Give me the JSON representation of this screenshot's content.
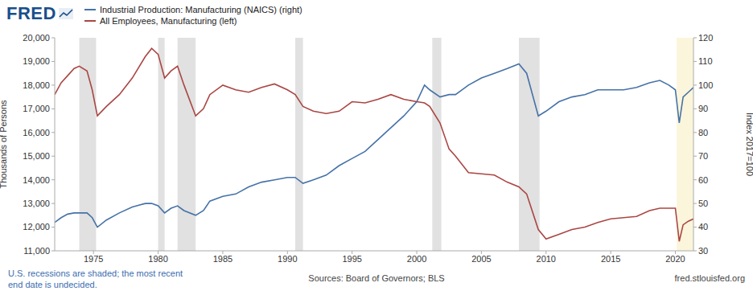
{
  "logo": "FRED",
  "footnote": [
    "U.S. recessions are shaded; the most recent",
    "end date is undecided."
  ],
  "source": "Sources: Board of Governors; BLS",
  "url": "fred.stlouisfed.org",
  "chart_data": {
    "type": "line",
    "ylabel": "Thousands of Persons",
    "y2label": "Index 2017=100",
    "legend": "top left",
    "grid": false,
    "x": [
      1972.0,
      1972.5,
      1973.0,
      1973.5,
      1973.9,
      1974.5,
      1974.9,
      1975.3,
      1976.0,
      1977.0,
      1978.0,
      1979.0,
      1979.5,
      1980.0,
      1980.5,
      1981.0,
      1981.5,
      1982.0,
      1982.9,
      1983.5,
      1984.0,
      1985.0,
      1986.0,
      1987.0,
      1988.0,
      1989.0,
      1990.0,
      1990.6,
      1991.2,
      1992.0,
      1993.0,
      1994.0,
      1995.0,
      1996.0,
      1997.0,
      1998.0,
      1999.0,
      2000.0,
      2000.6,
      2001.0,
      2001.8,
      2002.5,
      2003.0,
      2004.0,
      2005.0,
      2006.0,
      2007.0,
      2007.9,
      2008.5,
      2009.4,
      2010.0,
      2011.0,
      2012.0,
      2013.0,
      2014.0,
      2015.0,
      2016.0,
      2017.0,
      2018.0,
      2018.8,
      2019.5,
      2020.0,
      2020.3,
      2020.6,
      2021.0,
      2021.2,
      2021.4
    ],
    "series": [
      {
        "name": "Industrial Production: Manufacturing (NAICS) (right)",
        "color": "#4572a7",
        "axis": "y2",
        "values": [
          42,
          44,
          45.5,
          46,
          46,
          46,
          44,
          40,
          43,
          46,
          48.5,
          50,
          50,
          49,
          46,
          48,
          49,
          47,
          45,
          47,
          51,
          53,
          54,
          57,
          59,
          60,
          61,
          61,
          58.5,
          60,
          62,
          66,
          69,
          72,
          77,
          82,
          87,
          93,
          100,
          98,
          95,
          96,
          96,
          100,
          103,
          105,
          107,
          109,
          105,
          87,
          89,
          93,
          95,
          96,
          98,
          98,
          98,
          99,
          101,
          102,
          100,
          98,
          84,
          95,
          97,
          98,
          99
        ]
      },
      {
        "name": "All Employees, Manufacturing (left)",
        "color": "#aa4643",
        "values": [
          17600,
          18100,
          18400,
          18700,
          18800,
          18600,
          17800,
          16700,
          17100,
          17600,
          18300,
          19200,
          19550,
          19300,
          18300,
          18600,
          18800,
          18000,
          16700,
          17000,
          17600,
          18000,
          17800,
          17700,
          17900,
          18050,
          17800,
          17600,
          17100,
          16900,
          16800,
          16900,
          17300,
          17250,
          17400,
          17600,
          17400,
          17300,
          17250,
          17100,
          16400,
          15300,
          15000,
          14300,
          14250,
          14200,
          13900,
          13700,
          13400,
          11900,
          11500,
          11700,
          11900,
          12000,
          12200,
          12350,
          12400,
          12450,
          12700,
          12800,
          12800,
          12800,
          11400,
          12100,
          12250,
          12300,
          12350
        ]
      }
    ],
    "xlim": [
      1972.0,
      2021.4
    ],
    "xticks": [
      1975,
      1980,
      1985,
      1990,
      1995,
      2000,
      2005,
      2010,
      2015,
      2020
    ],
    "ylim": [
      11000,
      20000
    ],
    "yticks": [
      {
        "value": 11000,
        "label": "11,000"
      },
      {
        "value": 12000,
        "label": "12,000"
      },
      {
        "value": 13000,
        "label": "13,000"
      },
      {
        "value": 14000,
        "label": "14,000"
      },
      {
        "value": 15000,
        "label": "15,000"
      },
      {
        "value": 16000,
        "label": "16,000"
      },
      {
        "value": 17000,
        "label": "17,000"
      },
      {
        "value": 18000,
        "label": "18,000"
      },
      {
        "value": 19000,
        "label": "19,000"
      },
      {
        "value": 20000,
        "label": "20,000"
      }
    ],
    "y2lim": [
      30,
      120
    ],
    "y2ticks": [
      30,
      40,
      50,
      60,
      70,
      80,
      90,
      100,
      110,
      120
    ],
    "recessions": [
      {
        "start": 1973.9,
        "end": 1975.2,
        "color": "#e1e1e1"
      },
      {
        "start": 1980.0,
        "end": 1980.5,
        "color": "#e1e1e1"
      },
      {
        "start": 1981.5,
        "end": 1982.9,
        "color": "#e1e1e1"
      },
      {
        "start": 1990.6,
        "end": 1991.2,
        "color": "#e1e1e1"
      },
      {
        "start": 2001.2,
        "end": 2001.9,
        "color": "#e1e1e1"
      },
      {
        "start": 2007.9,
        "end": 2009.5,
        "color": "#e1e1e1"
      },
      {
        "start": 2020.1,
        "end": 2021.4,
        "color": "#fbf5dc"
      }
    ]
  }
}
